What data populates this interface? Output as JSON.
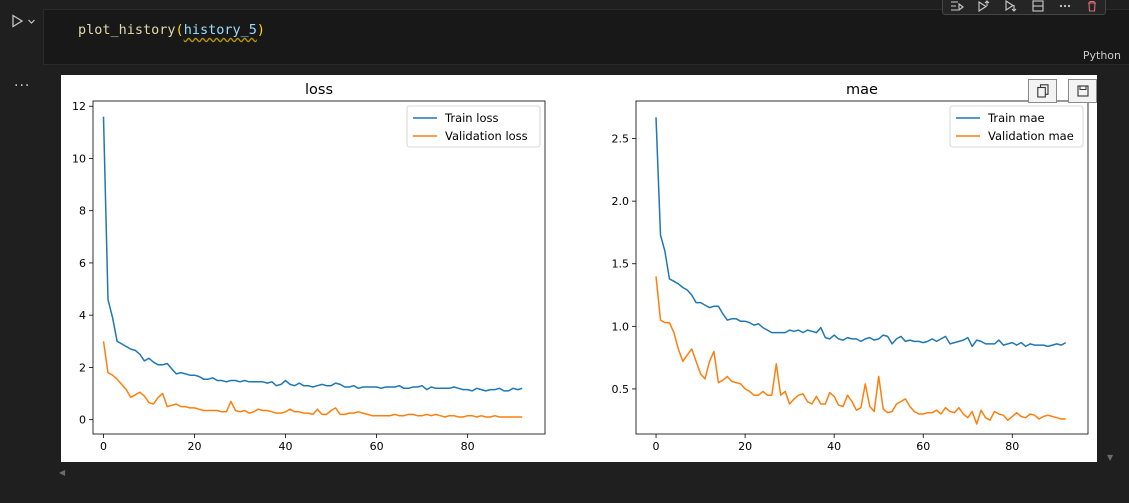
{
  "cell": {
    "code_fn": "plot_history",
    "code_open": "(",
    "code_arg": "history_5",
    "code_close": ")",
    "language": "Python",
    "output_prompt": "..."
  },
  "toolbar_icons": [
    "run-by-line-icon",
    "execute-above-icon",
    "execute-below-icon",
    "split-cell-icon",
    "more-icon",
    "delete-icon"
  ],
  "output_buttons": [
    "copy-icon",
    "save-icon"
  ],
  "chart_data": [
    {
      "type": "line",
      "title": "loss",
      "xlim": [
        -2.3,
        97
      ],
      "ylim": [
        -0.55,
        12.2
      ],
      "xticks": [
        0,
        20,
        40,
        60,
        80
      ],
      "xtick_labels": [
        "0",
        "20",
        "40",
        "60",
        "80"
      ],
      "yticks": [
        0,
        2,
        4,
        6,
        8,
        10,
        12
      ],
      "ytick_labels": [
        "0",
        "2",
        "4",
        "6",
        "8",
        "10",
        "12"
      ],
      "legend_position": "top-right",
      "grid": false,
      "series": [
        {
          "name": "Train loss",
          "color": "#1f77b4",
          "values": [
            11.6,
            4.6,
            3.9,
            3.0,
            2.9,
            2.8,
            2.7,
            2.65,
            2.5,
            2.25,
            2.35,
            2.2,
            2.1,
            2.1,
            2.15,
            1.95,
            1.75,
            1.8,
            1.75,
            1.7,
            1.7,
            1.65,
            1.55,
            1.55,
            1.6,
            1.5,
            1.5,
            1.45,
            1.5,
            1.5,
            1.45,
            1.5,
            1.45,
            1.45,
            1.45,
            1.45,
            1.4,
            1.45,
            1.3,
            1.35,
            1.5,
            1.35,
            1.3,
            1.4,
            1.3,
            1.3,
            1.25,
            1.3,
            1.35,
            1.3,
            1.3,
            1.4,
            1.35,
            1.25,
            1.25,
            1.3,
            1.2,
            1.25,
            1.25,
            1.25,
            1.25,
            1.2,
            1.25,
            1.25,
            1.25,
            1.3,
            1.2,
            1.2,
            1.25,
            1.25,
            1.3,
            1.15,
            1.25,
            1.2,
            1.2,
            1.2,
            1.2,
            1.25,
            1.2,
            1.15,
            1.15,
            1.1,
            1.2,
            1.15,
            1.1,
            1.15,
            1.15,
            1.2,
            1.1,
            1.1,
            1.2,
            1.15,
            1.2
          ]
        },
        {
          "name": "Validation loss",
          "color": "#ff7f0e",
          "values": [
            3.0,
            1.8,
            1.7,
            1.55,
            1.35,
            1.15,
            0.85,
            0.95,
            1.05,
            0.9,
            0.65,
            0.6,
            0.85,
            1.0,
            0.5,
            0.55,
            0.6,
            0.5,
            0.5,
            0.45,
            0.45,
            0.4,
            0.35,
            0.35,
            0.35,
            0.35,
            0.3,
            0.3,
            0.7,
            0.35,
            0.3,
            0.35,
            0.25,
            0.3,
            0.4,
            0.35,
            0.35,
            0.3,
            0.25,
            0.25,
            0.3,
            0.4,
            0.3,
            0.3,
            0.25,
            0.25,
            0.2,
            0.4,
            0.2,
            0.2,
            0.35,
            0.45,
            0.2,
            0.2,
            0.25,
            0.25,
            0.3,
            0.25,
            0.2,
            0.15,
            0.15,
            0.15,
            0.15,
            0.15,
            0.2,
            0.15,
            0.15,
            0.2,
            0.2,
            0.15,
            0.15,
            0.2,
            0.15,
            0.2,
            0.15,
            0.1,
            0.15,
            0.15,
            0.1,
            0.1,
            0.15,
            0.15,
            0.1,
            0.15,
            0.1,
            0.1,
            0.15,
            0.1,
            0.1,
            0.1,
            0.1,
            0.1,
            0.1
          ]
        }
      ]
    },
    {
      "type": "line",
      "title": "mae",
      "xlim": [
        -4.5,
        97
      ],
      "ylim": [
        0.14,
        2.8
      ],
      "xticks": [
        0,
        20,
        40,
        60,
        80
      ],
      "xtick_labels": [
        "0",
        "20",
        "40",
        "60",
        "80"
      ],
      "yticks": [
        0.5,
        1.0,
        1.5,
        2.0,
        2.5
      ],
      "ytick_labels": [
        "0.5",
        "1.0",
        "1.5",
        "2.0",
        "2.5"
      ],
      "legend_position": "top-right",
      "grid": false,
      "series": [
        {
          "name": "Train mae",
          "color": "#1f77b4",
          "values": [
            2.67,
            1.73,
            1.6,
            1.38,
            1.36,
            1.34,
            1.31,
            1.29,
            1.25,
            1.19,
            1.19,
            1.17,
            1.15,
            1.16,
            1.16,
            1.1,
            1.05,
            1.06,
            1.06,
            1.04,
            1.04,
            1.03,
            1.01,
            1.02,
            0.99,
            0.97,
            0.95,
            0.95,
            0.95,
            0.95,
            0.97,
            0.96,
            0.97,
            0.95,
            0.97,
            0.96,
            0.95,
            0.99,
            0.91,
            0.9,
            0.93,
            0.9,
            0.89,
            0.91,
            0.9,
            0.9,
            0.88,
            0.9,
            0.91,
            0.89,
            0.9,
            0.93,
            0.92,
            0.86,
            0.9,
            0.92,
            0.88,
            0.89,
            0.88,
            0.88,
            0.87,
            0.88,
            0.9,
            0.88,
            0.9,
            0.92,
            0.86,
            0.87,
            0.88,
            0.89,
            0.91,
            0.84,
            0.89,
            0.88,
            0.86,
            0.86,
            0.86,
            0.89,
            0.85,
            0.86,
            0.87,
            0.85,
            0.87,
            0.84,
            0.86,
            0.85,
            0.85,
            0.85,
            0.84,
            0.85,
            0.86,
            0.85,
            0.87
          ]
        },
        {
          "name": "Validation mae",
          "color": "#ff7f0e",
          "values": [
            1.4,
            1.05,
            1.03,
            1.03,
            0.95,
            0.82,
            0.72,
            0.77,
            0.82,
            0.72,
            0.62,
            0.58,
            0.72,
            0.8,
            0.55,
            0.57,
            0.6,
            0.56,
            0.55,
            0.54,
            0.5,
            0.48,
            0.45,
            0.45,
            0.48,
            0.45,
            0.45,
            0.7,
            0.45,
            0.48,
            0.38,
            0.42,
            0.45,
            0.46,
            0.4,
            0.38,
            0.44,
            0.38,
            0.38,
            0.47,
            0.44,
            0.37,
            0.36,
            0.45,
            0.4,
            0.33,
            0.35,
            0.54,
            0.36,
            0.32,
            0.6,
            0.34,
            0.31,
            0.32,
            0.38,
            0.4,
            0.42,
            0.36,
            0.32,
            0.3,
            0.3,
            0.31,
            0.31,
            0.33,
            0.3,
            0.35,
            0.32,
            0.31,
            0.35,
            0.3,
            0.27,
            0.32,
            0.22,
            0.33,
            0.27,
            0.25,
            0.32,
            0.3,
            0.29,
            0.25,
            0.28,
            0.31,
            0.28,
            0.27,
            0.3,
            0.29,
            0.26,
            0.28,
            0.29,
            0.28,
            0.27,
            0.26,
            0.26
          ]
        }
      ]
    }
  ]
}
